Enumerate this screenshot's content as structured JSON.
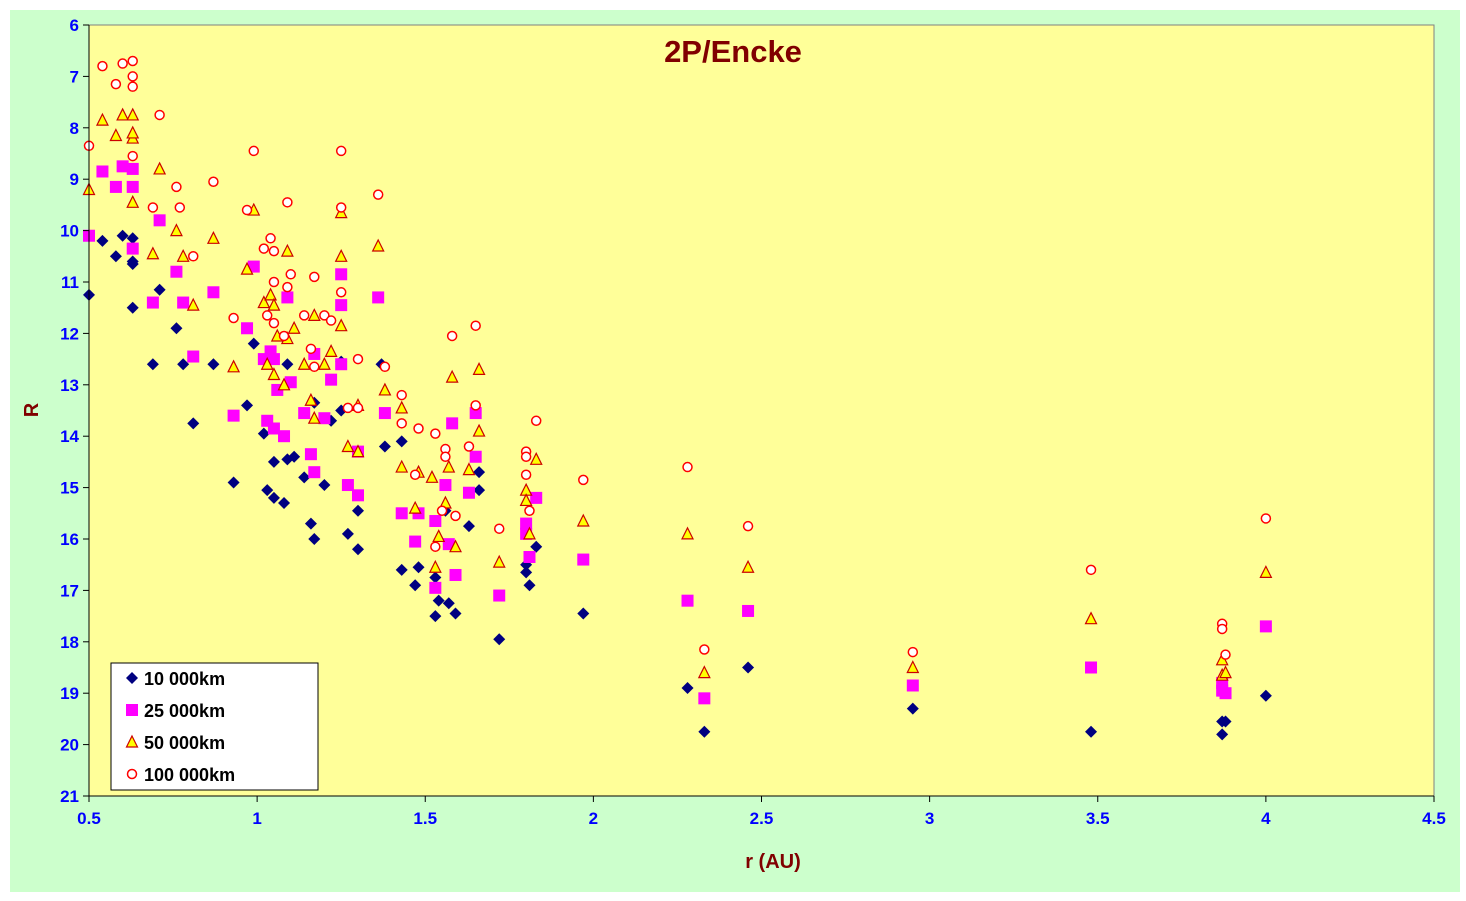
{
  "colors": {
    "chart_area": "#ccffcc",
    "plot_area": "#ffff99",
    "title": "#800000",
    "axis_title": "#800000",
    "tick_label": "#0000ff",
    "s10000": "#000080",
    "s25000": "#ff00ff",
    "s50000_fill": "#ffff00",
    "s50000_stroke": "#cc0000",
    "s100000": "#ff0000"
  },
  "chart_data": {
    "type": "scatter",
    "title": "2P/Encke",
    "xlabel": "r (AU)",
    "ylabel": "R",
    "xlim": [
      0.5,
      4.5
    ],
    "ylim": [
      6,
      21
    ],
    "y_reversed": true,
    "grid": false,
    "legend_position": "bottom-left",
    "x_ticks": [
      "0.5",
      "1",
      "1.5",
      "2",
      "2.5",
      "3",
      "3.5",
      "4",
      "4.5"
    ],
    "y_ticks": [
      "6",
      "7",
      "8",
      "9",
      "10",
      "11",
      "12",
      "13",
      "14",
      "15",
      "16",
      "17",
      "18",
      "19",
      "20",
      "21"
    ],
    "series": [
      {
        "name": "10 000km",
        "marker": "diamond",
        "x": [
          0.5,
          0.54,
          0.58,
          0.6,
          0.63,
          0.63,
          0.63,
          0.63,
          0.69,
          0.71,
          0.76,
          0.78,
          0.81,
          0.87,
          0.93,
          0.97,
          0.99,
          1.02,
          1.03,
          1.05,
          1.05,
          1.08,
          1.09,
          1.09,
          1.11,
          1.14,
          1.16,
          1.17,
          1.17,
          1.2,
          1.22,
          1.25,
          1.25,
          1.27,
          1.3,
          1.3,
          1.37,
          1.38,
          1.43,
          1.43,
          1.47,
          1.48,
          1.53,
          1.53,
          1.54,
          1.56,
          1.57,
          1.59,
          1.63,
          1.66,
          1.66,
          1.72,
          1.8,
          1.8,
          1.81,
          1.83,
          1.97,
          2.28,
          2.33,
          2.46,
          2.95,
          3.48,
          3.87,
          3.87,
          3.88,
          4.0
        ],
        "y": [
          11.25,
          10.2,
          10.5,
          10.1,
          11.5,
          10.65,
          10.6,
          10.15,
          12.6,
          11.15,
          11.9,
          12.6,
          13.75,
          12.6,
          14.9,
          13.4,
          12.2,
          13.95,
          15.05,
          14.5,
          15.2,
          15.3,
          14.45,
          12.6,
          14.4,
          14.8,
          15.7,
          16.0,
          13.35,
          14.95,
          13.7,
          13.5,
          12.55,
          15.9,
          16.2,
          15.45,
          12.6,
          14.2,
          16.6,
          14.1,
          16.9,
          16.55,
          17.5,
          16.75,
          17.2,
          15.45,
          17.25,
          17.45,
          15.75,
          15.05,
          14.7,
          17.95,
          16.65,
          16.5,
          16.9,
          16.15,
          17.45,
          18.9,
          19.75,
          18.5,
          19.3,
          19.75,
          19.55,
          19.8,
          19.55,
          19.05
        ]
      },
      {
        "name": "25 000km",
        "marker": "square",
        "x": [
          0.5,
          0.54,
          0.58,
          0.6,
          0.63,
          0.63,
          0.63,
          0.69,
          0.71,
          0.76,
          0.78,
          0.81,
          0.87,
          0.93,
          0.97,
          0.99,
          1.02,
          1.03,
          1.04,
          1.05,
          1.05,
          1.06,
          1.08,
          1.09,
          1.1,
          1.14,
          1.16,
          1.17,
          1.17,
          1.2,
          1.22,
          1.25,
          1.25,
          1.25,
          1.27,
          1.3,
          1.3,
          1.36,
          1.38,
          1.43,
          1.47,
          1.48,
          1.53,
          1.53,
          1.56,
          1.57,
          1.58,
          1.59,
          1.63,
          1.65,
          1.65,
          1.72,
          1.8,
          1.8,
          1.81,
          1.83,
          1.97,
          2.28,
          2.33,
          2.46,
          2.95,
          3.48,
          3.87,
          3.87,
          3.88,
          4.0
        ],
        "y": [
          10.1,
          8.85,
          9.15,
          8.75,
          9.15,
          10.35,
          8.8,
          11.4,
          9.8,
          10.8,
          11.4,
          12.45,
          11.2,
          13.6,
          11.9,
          10.7,
          12.5,
          13.7,
          12.35,
          12.5,
          13.85,
          13.1,
          14.0,
          11.3,
          12.95,
          13.55,
          14.35,
          12.4,
          14.7,
          13.65,
          12.9,
          11.45,
          10.85,
          12.6,
          14.95,
          15.15,
          14.3,
          11.3,
          13.55,
          15.5,
          16.05,
          15.5,
          16.95,
          15.65,
          14.95,
          16.1,
          13.75,
          16.7,
          15.1,
          13.55,
          14.4,
          17.1,
          15.7,
          15.9,
          16.35,
          15.2,
          16.4,
          17.2,
          19.1,
          17.4,
          18.85,
          18.5,
          18.8,
          18.95,
          19.0,
          17.7
        ]
      },
      {
        "name": "50 000km",
        "marker": "triangle",
        "x": [
          0.5,
          0.54,
          0.58,
          0.6,
          0.63,
          0.63,
          0.63,
          0.63,
          0.69,
          0.71,
          0.76,
          0.78,
          0.81,
          0.87,
          0.93,
          0.97,
          0.99,
          1.02,
          1.03,
          1.04,
          1.05,
          1.05,
          1.06,
          1.08,
          1.09,
          1.09,
          1.11,
          1.14,
          1.16,
          1.17,
          1.17,
          1.2,
          1.22,
          1.25,
          1.25,
          1.25,
          1.27,
          1.3,
          1.3,
          1.36,
          1.38,
          1.43,
          1.43,
          1.47,
          1.48,
          1.52,
          1.53,
          1.54,
          1.56,
          1.57,
          1.58,
          1.59,
          1.63,
          1.66,
          1.66,
          1.72,
          1.8,
          1.8,
          1.81,
          1.83,
          1.97,
          2.28,
          2.33,
          2.46,
          2.95,
          3.48,
          3.87,
          3.87,
          3.88,
          4.0
        ],
        "y": [
          9.2,
          7.85,
          8.15,
          7.75,
          8.2,
          8.1,
          7.75,
          9.45,
          10.45,
          8.8,
          10.0,
          10.5,
          11.45,
          10.15,
          12.65,
          10.75,
          9.6,
          11.4,
          12.6,
          11.25,
          12.8,
          11.45,
          12.05,
          13.0,
          12.1,
          10.4,
          11.9,
          12.6,
          13.3,
          11.65,
          13.65,
          12.6,
          12.35,
          11.85,
          10.5,
          9.65,
          14.2,
          13.4,
          14.3,
          10.3,
          13.1,
          14.6,
          13.45,
          15.4,
          14.7,
          14.8,
          16.55,
          15.95,
          15.3,
          14.6,
          12.85,
          16.15,
          14.65,
          13.9,
          12.7,
          16.45,
          15.05,
          15.25,
          15.9,
          14.45,
          15.65,
          15.9,
          18.6,
          16.55,
          18.5,
          17.55,
          18.35,
          18.65,
          18.6,
          16.65
        ]
      },
      {
        "name": "100 000km",
        "marker": "circle",
        "x": [
          0.5,
          0.54,
          0.58,
          0.6,
          0.63,
          0.63,
          0.63,
          0.63,
          0.69,
          0.71,
          0.76,
          0.77,
          0.81,
          0.87,
          0.93,
          0.97,
          0.99,
          1.02,
          1.03,
          1.04,
          1.05,
          1.05,
          1.05,
          1.08,
          1.09,
          1.09,
          1.1,
          1.14,
          1.16,
          1.17,
          1.17,
          1.2,
          1.22,
          1.25,
          1.25,
          1.25,
          1.27,
          1.3,
          1.3,
          1.36,
          1.38,
          1.43,
          1.43,
          1.47,
          1.48,
          1.53,
          1.53,
          1.55,
          1.56,
          1.56,
          1.58,
          1.59,
          1.63,
          1.65,
          1.65,
          1.72,
          1.8,
          1.8,
          1.8,
          1.81,
          1.83,
          1.97,
          2.28,
          2.33,
          2.46,
          2.95,
          3.48,
          3.87,
          3.87,
          3.88,
          4.0
        ],
        "y": [
          8.35,
          6.8,
          7.15,
          6.75,
          6.7,
          7.0,
          7.2,
          8.55,
          9.55,
          7.75,
          9.15,
          9.55,
          10.5,
          9.05,
          11.7,
          9.6,
          8.45,
          10.35,
          11.65,
          10.15,
          11.8,
          11.0,
          10.4,
          12.05,
          9.45,
          11.1,
          10.85,
          11.65,
          12.3,
          10.9,
          12.65,
          11.65,
          11.75,
          11.2,
          9.55,
          8.45,
          13.45,
          12.5,
          13.45,
          9.3,
          12.65,
          13.2,
          13.75,
          14.75,
          13.85,
          13.95,
          16.15,
          15.45,
          14.25,
          14.4,
          12.05,
          15.55,
          14.2,
          13.4,
          11.85,
          15.8,
          14.3,
          14.75,
          14.4,
          15.45,
          13.7,
          14.85,
          14.6,
          18.15,
          15.75,
          18.2,
          16.6,
          17.65,
          17.75,
          18.25,
          15.6
        ]
      }
    ]
  }
}
